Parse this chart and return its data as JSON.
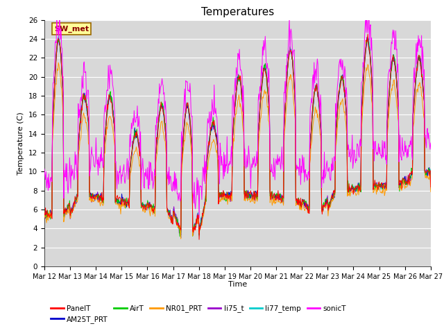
{
  "title": "Temperatures",
  "xlabel": "Time",
  "ylabel": "Temperature (C)",
  "ylim": [
    0,
    26
  ],
  "yticks": [
    0,
    2,
    4,
    6,
    8,
    10,
    12,
    14,
    16,
    18,
    20,
    22,
    24,
    26
  ],
  "annotation": "SW_met",
  "series_colors": {
    "PanelT": "#ff0000",
    "AM25T_PRT": "#0000cc",
    "AirT": "#00cc00",
    "NR01_PRT": "#ff9900",
    "li75_t": "#9900cc",
    "li77_temp": "#00cccc",
    "sonicT": "#ff00ff"
  },
  "background_color": "#d8d8d8",
  "fig_background": "#ffffff",
  "grid_color": "#ffffff",
  "title_fontsize": 11,
  "tick_fontsize": 7,
  "axis_fontsize": 8
}
